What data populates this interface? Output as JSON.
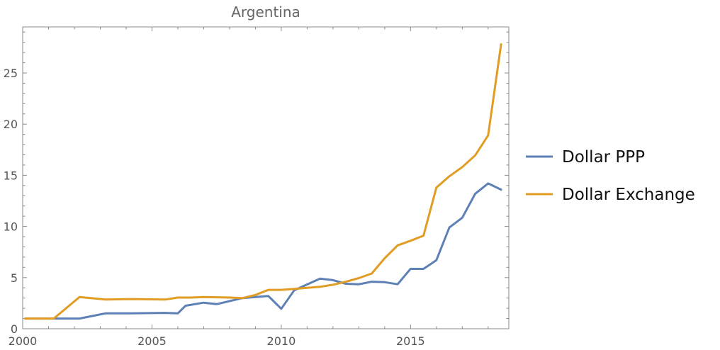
{
  "chart_data": {
    "type": "line",
    "title": "Argentina",
    "xlabel": "",
    "ylabel": "",
    "xlim": [
      2000,
      2018.8
    ],
    "ylim": [
      0,
      29.5
    ],
    "x_ticks": [
      2000,
      2005,
      2010,
      2015
    ],
    "y_ticks": [
      0,
      5,
      10,
      15,
      20,
      25
    ],
    "grid": false,
    "legend_position": "right",
    "series": [
      {
        "name": "Dollar PPP",
        "color": "#5e81b5",
        "points": [
          [
            2000.1,
            1.0
          ],
          [
            2001.2,
            1.0
          ],
          [
            2002.2,
            1.0
          ],
          [
            2003.2,
            1.5
          ],
          [
            2004.2,
            1.5
          ],
          [
            2005.5,
            1.55
          ],
          [
            2006.0,
            1.5
          ],
          [
            2006.3,
            2.25
          ],
          [
            2007.0,
            2.55
          ],
          [
            2007.5,
            2.4
          ],
          [
            2008.5,
            3.0
          ],
          [
            2009.5,
            3.2
          ],
          [
            2010.0,
            1.95
          ],
          [
            2010.5,
            3.75
          ],
          [
            2011.5,
            4.9
          ],
          [
            2012.0,
            4.75
          ],
          [
            2012.5,
            4.4
          ],
          [
            2013.0,
            4.35
          ],
          [
            2013.5,
            4.6
          ],
          [
            2014.0,
            4.55
          ],
          [
            2014.5,
            4.35
          ],
          [
            2015.0,
            5.85
          ],
          [
            2015.5,
            5.85
          ],
          [
            2016.0,
            6.7
          ],
          [
            2016.5,
            9.9
          ],
          [
            2017.0,
            10.85
          ],
          [
            2017.5,
            13.2
          ],
          [
            2018.0,
            14.2
          ],
          [
            2018.5,
            13.6
          ]
        ]
      },
      {
        "name": "Dollar Exchange",
        "color": "#e19c24",
        "points": [
          [
            2000.1,
            1.0
          ],
          [
            2001.2,
            1.0
          ],
          [
            2002.2,
            3.1
          ],
          [
            2003.2,
            2.85
          ],
          [
            2004.2,
            2.9
          ],
          [
            2005.5,
            2.85
          ],
          [
            2006.0,
            3.05
          ],
          [
            2006.5,
            3.05
          ],
          [
            2007.0,
            3.1
          ],
          [
            2008.0,
            3.05
          ],
          [
            2008.5,
            3.0
          ],
          [
            2009.0,
            3.3
          ],
          [
            2009.5,
            3.8
          ],
          [
            2010.0,
            3.8
          ],
          [
            2010.5,
            3.9
          ],
          [
            2011.0,
            4.0
          ],
          [
            2011.5,
            4.1
          ],
          [
            2012.0,
            4.3
          ],
          [
            2012.5,
            4.6
          ],
          [
            2013.0,
            4.95
          ],
          [
            2013.5,
            5.4
          ],
          [
            2014.0,
            6.9
          ],
          [
            2014.5,
            8.15
          ],
          [
            2015.0,
            8.6
          ],
          [
            2015.5,
            9.1
          ],
          [
            2016.0,
            13.8
          ],
          [
            2016.5,
            14.9
          ],
          [
            2017.0,
            15.8
          ],
          [
            2017.5,
            16.95
          ],
          [
            2018.0,
            18.9
          ],
          [
            2018.5,
            27.8
          ]
        ]
      }
    ]
  }
}
